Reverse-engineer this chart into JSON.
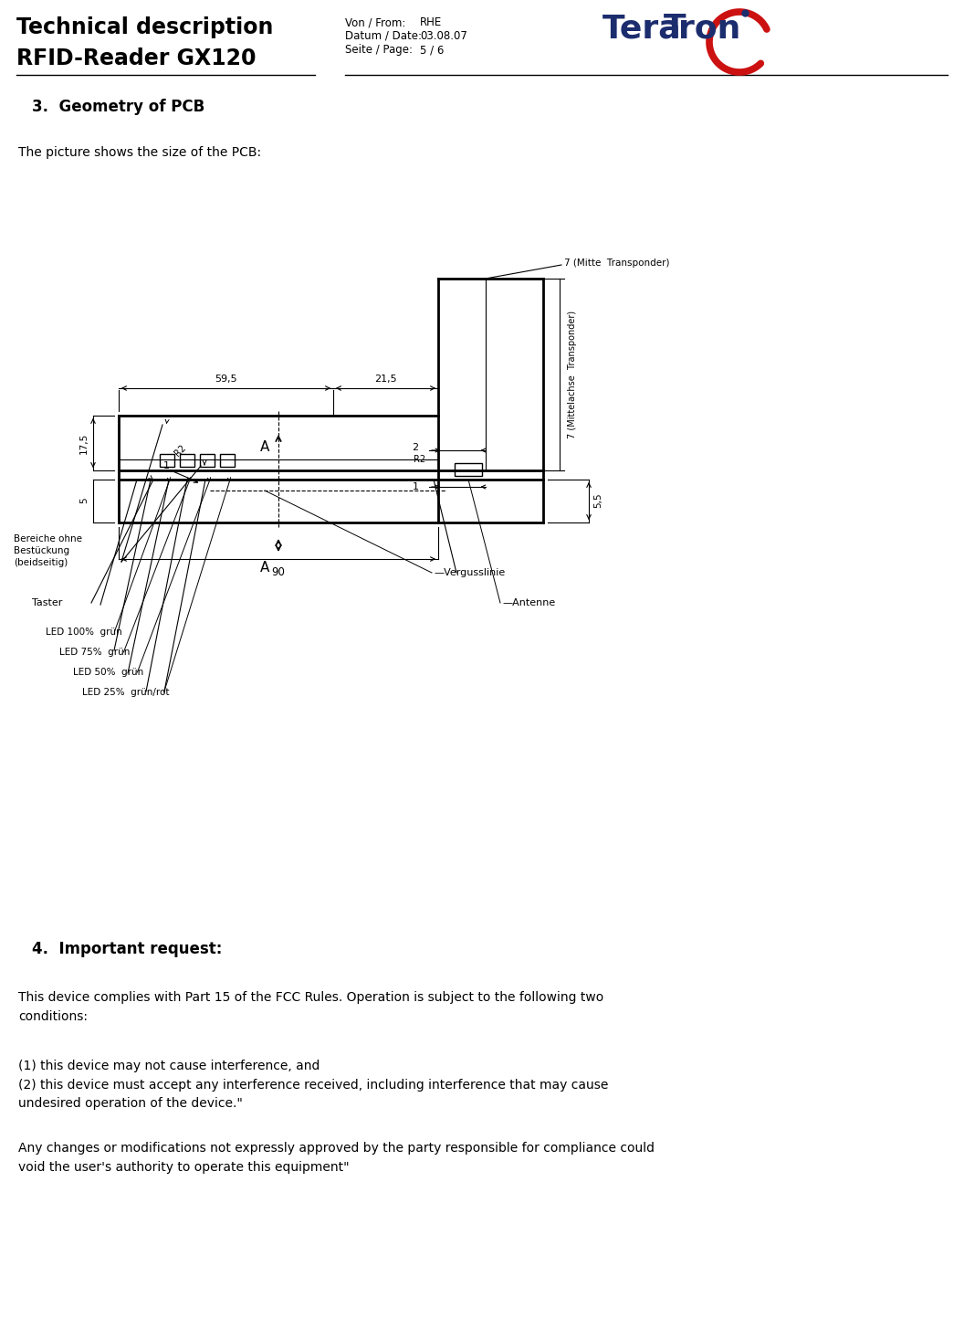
{
  "title_line1": "Technical description",
  "title_line2": "RFID-Reader GX120",
  "meta_label1": "Von / From:",
  "meta_val1": "RHE",
  "meta_label2": "Datum / Date:",
  "meta_val2": "03.08.07",
  "meta_label3": "Seite / Page:",
  "meta_val3": "5 / 6",
  "section3_title": "3.  Geometry of PCB",
  "section3_intro": "The picture shows the size of the PCB:",
  "section4_title": "4.  Important request:",
  "section4_para1": "This device complies with Part 15 of the FCC Rules. Operation is subject to the following two\nconditions:",
  "section4_para2": "(1) this device may not cause interference, and\n(2) this device must accept any interference received, including interference that may cause\nundesired operation of the device.\"",
  "section4_para3": "Any changes or modifications not expressly approved by the party responsible for compliance could\nvoid the user's authority to operate this equipment\"",
  "bg_color": "#ffffff",
  "text_color": "#000000"
}
